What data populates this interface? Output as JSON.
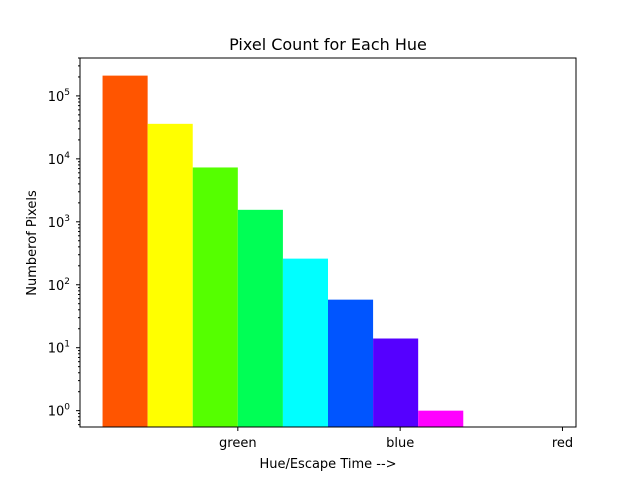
{
  "chart_data": {
    "type": "bar",
    "title": "Pixel Count for Each Hue",
    "xlabel": "Hue/Escape Time -->",
    "ylabel": "Numberof Pixels",
    "yscale": "log",
    "ylim": [
      0.55,
      400000
    ],
    "grid": false,
    "legend": "none",
    "x_ticks": [
      {
        "label": "green",
        "at": 3
      },
      {
        "label": "blue",
        "at": 6.6
      },
      {
        "label": "red",
        "at": 10.2
      }
    ],
    "y_ticks": [
      {
        "base": "10",
        "exp": "0",
        "value": 1
      },
      {
        "base": "10",
        "exp": "1",
        "value": 10
      },
      {
        "base": "10",
        "exp": "2",
        "value": 100
      },
      {
        "base": "10",
        "exp": "3",
        "value": 1000
      },
      {
        "base": "10",
        "exp": "4",
        "value": 10000
      },
      {
        "base": "10",
        "exp": "5",
        "value": 100000
      }
    ],
    "bars": [
      {
        "value": 210000,
        "color": "#ff5500"
      },
      {
        "value": 36000,
        "color": "#ffff00"
      },
      {
        "value": 7300,
        "color": "#55ff00"
      },
      {
        "value": 1550,
        "color": "#00ff55"
      },
      {
        "value": 260,
        "color": "#00ffff"
      },
      {
        "value": 58,
        "color": "#0055ff"
      },
      {
        "value": 14,
        "color": "#5500ff"
      },
      {
        "value": 1,
        "color": "#ff00ff"
      },
      {
        "value": 0,
        "color": "#ff0055"
      }
    ]
  }
}
